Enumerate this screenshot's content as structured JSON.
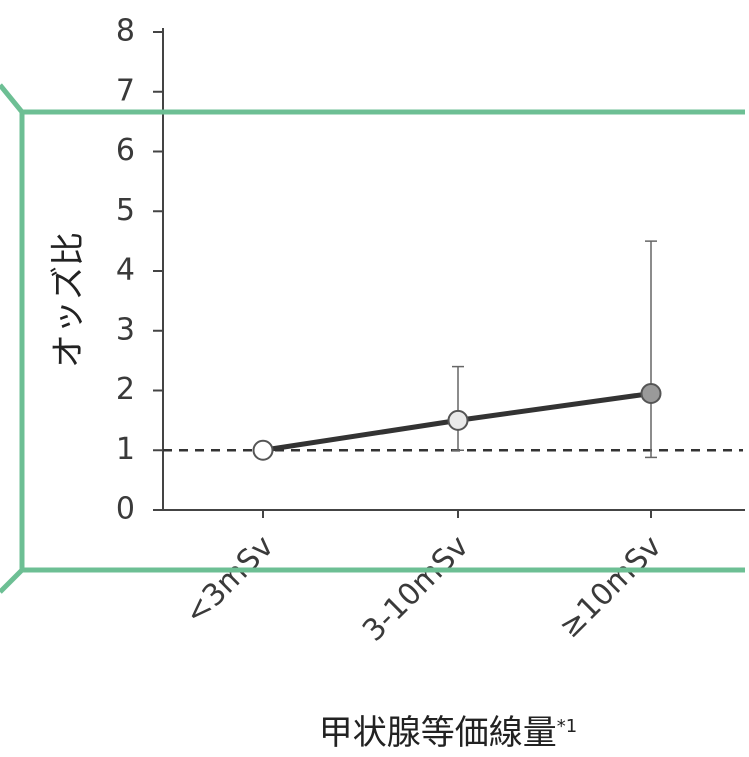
{
  "chart_data": {
    "type": "line",
    "ylabel": "オッズ比",
    "xlabel": "甲状腺等価線量",
    "xlabel_footnote": "*1",
    "categories": [
      "<3mSv",
      "3-10mSv",
      "≥10mSv"
    ],
    "yticks": [
      0,
      1,
      2,
      3,
      4,
      5,
      6,
      7,
      8
    ],
    "ylim": [
      0,
      8
    ],
    "reference_line": 1,
    "series": [
      {
        "values": [
          1.0,
          1.5,
          1.95
        ],
        "error_low": [
          1.0,
          1.0,
          0.88
        ],
        "error_high": [
          1.0,
          2.4,
          4.5
        ],
        "marker_fills": [
          "#ffffff",
          "#e9e9e9",
          "#9a9a9a"
        ]
      }
    ],
    "grid": false
  },
  "overlay": {
    "border_color": "#6dbf94"
  }
}
